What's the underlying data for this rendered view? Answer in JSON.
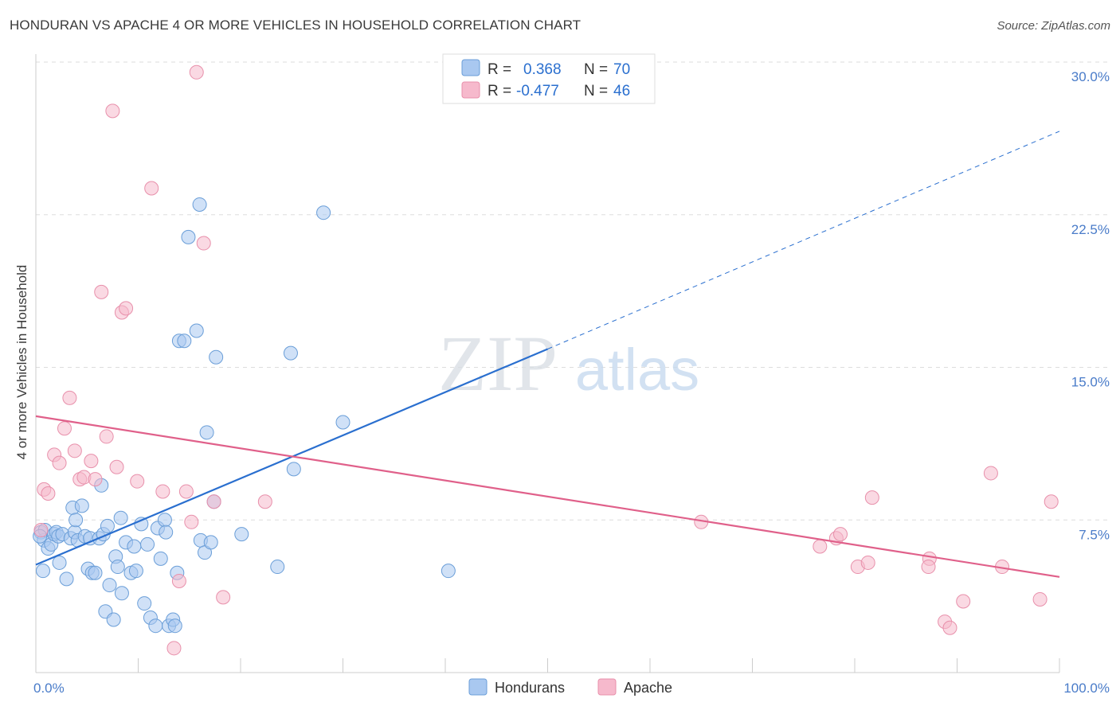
{
  "title": "HONDURAN VS APACHE 4 OR MORE VEHICLES IN HOUSEHOLD CORRELATION CHART",
  "source": "Source: ZipAtlas.com",
  "watermark": {
    "zip": "ZIP",
    "atlas": "atlas"
  },
  "colors": {
    "blue_fill": "#a9c8f0",
    "blue_stroke": "#6a9ed8",
    "blue_line": "#2a6fcf",
    "pink_fill": "#f6b9cc",
    "pink_stroke": "#e890ab",
    "pink_line": "#e0608a",
    "grid": "#dddddd",
    "tick_text": "#4a7cc9"
  },
  "legend": {
    "rows": [
      {
        "r_label": "R =",
        "r_value": "0.368",
        "n_label": "N =",
        "n_value": "70",
        "color": "blue"
      },
      {
        "r_label": "R =",
        "r_value": "-0.477",
        "n_label": "N =",
        "n_value": "46",
        "color": "pink"
      }
    ]
  },
  "chart_data": {
    "type": "scatter",
    "title": "HONDURAN VS APACHE 4 OR MORE VEHICLES IN HOUSEHOLD CORRELATION CHART",
    "xlabel": "",
    "ylabel": "4 or more Vehicles in Household",
    "xlim": [
      0,
      100
    ],
    "ylim": [
      0,
      31
    ],
    "x_ticks": [
      "0.0%",
      "100.0%"
    ],
    "y_ticks": [
      {
        "value": 7.5,
        "label": "7.5%"
      },
      {
        "value": 15.0,
        "label": "15.0%"
      },
      {
        "value": 22.5,
        "label": "22.5%"
      },
      {
        "value": 30.0,
        "label": "30.0%"
      }
    ],
    "grid": true,
    "legend_position": "top-center",
    "series": [
      {
        "name": "Hondurans",
        "color": "blue",
        "trend": {
          "x": [
            0,
            50
          ],
          "y": [
            5.3,
            15.9
          ],
          "dashed_extension_to": [
            100,
            26.6
          ]
        },
        "points": [
          [
            0.5,
            6.9
          ],
          [
            0.8,
            6.5
          ],
          [
            0.9,
            7.0
          ],
          [
            0.7,
            5.0
          ],
          [
            1.2,
            6.1
          ],
          [
            1.5,
            6.3
          ],
          [
            1.8,
            6.8
          ],
          [
            2.0,
            6.9
          ],
          [
            2.2,
            6.7
          ],
          [
            2.3,
            5.4
          ],
          [
            2.6,
            6.8
          ],
          [
            3.0,
            4.6
          ],
          [
            3.4,
            6.6
          ],
          [
            3.6,
            8.1
          ],
          [
            3.8,
            6.9
          ],
          [
            3.9,
            7.5
          ],
          [
            4.1,
            6.5
          ],
          [
            4.5,
            8.2
          ],
          [
            4.8,
            6.7
          ],
          [
            5.1,
            5.1
          ],
          [
            5.3,
            6.6
          ],
          [
            5.5,
            4.9
          ],
          [
            5.8,
            4.9
          ],
          [
            6.2,
            6.6
          ],
          [
            6.4,
            9.2
          ],
          [
            6.6,
            6.8
          ],
          [
            6.8,
            3.0
          ],
          [
            7.0,
            7.2
          ],
          [
            7.2,
            4.3
          ],
          [
            7.6,
            2.6
          ],
          [
            7.8,
            5.7
          ],
          [
            8.0,
            5.2
          ],
          [
            8.3,
            7.6
          ],
          [
            8.4,
            3.9
          ],
          [
            8.8,
            6.4
          ],
          [
            9.3,
            4.9
          ],
          [
            9.6,
            6.2
          ],
          [
            9.8,
            5.0
          ],
          [
            10.3,
            7.3
          ],
          [
            10.6,
            3.4
          ],
          [
            10.9,
            6.3
          ],
          [
            11.2,
            2.7
          ],
          [
            11.7,
            2.3
          ],
          [
            11.9,
            7.1
          ],
          [
            12.2,
            5.6
          ],
          [
            12.6,
            7.5
          ],
          [
            12.7,
            6.9
          ],
          [
            13.0,
            2.3
          ],
          [
            13.4,
            2.6
          ],
          [
            13.6,
            2.3
          ],
          [
            13.8,
            4.9
          ],
          [
            14.0,
            16.3
          ],
          [
            14.5,
            16.3
          ],
          [
            14.9,
            21.4
          ],
          [
            15.7,
            16.8
          ],
          [
            16.0,
            23.0
          ],
          [
            16.1,
            6.5
          ],
          [
            16.5,
            5.9
          ],
          [
            16.7,
            11.8
          ],
          [
            17.1,
            6.4
          ],
          [
            17.4,
            8.4
          ],
          [
            17.6,
            15.5
          ],
          [
            20.1,
            6.8
          ],
          [
            23.6,
            5.2
          ],
          [
            25.2,
            10.0
          ],
          [
            24.9,
            15.7
          ],
          [
            28.1,
            22.6
          ],
          [
            30.0,
            12.3
          ],
          [
            40.3,
            5.0
          ],
          [
            0.4,
            6.7
          ]
        ]
      },
      {
        "name": "Apache",
        "color": "pink",
        "trend": {
          "x": [
            0,
            100
          ],
          "y": [
            12.6,
            4.7
          ]
        },
        "points": [
          [
            0.5,
            7.0
          ],
          [
            0.8,
            9.0
          ],
          [
            1.2,
            8.8
          ],
          [
            1.8,
            10.7
          ],
          [
            2.3,
            10.3
          ],
          [
            2.8,
            12.0
          ],
          [
            3.3,
            13.5
          ],
          [
            3.8,
            10.9
          ],
          [
            4.3,
            9.5
          ],
          [
            4.7,
            9.6
          ],
          [
            5.4,
            10.4
          ],
          [
            5.8,
            9.5
          ],
          [
            6.4,
            18.7
          ],
          [
            6.9,
            11.6
          ],
          [
            7.5,
            27.6
          ],
          [
            7.9,
            10.1
          ],
          [
            8.4,
            17.7
          ],
          [
            8.8,
            17.9
          ],
          [
            9.9,
            9.4
          ],
          [
            11.3,
            23.8
          ],
          [
            12.4,
            8.9
          ],
          [
            14.0,
            4.5
          ],
          [
            14.7,
            8.9
          ],
          [
            15.2,
            7.4
          ],
          [
            15.7,
            29.5
          ],
          [
            16.4,
            21.1
          ],
          [
            17.4,
            8.4
          ],
          [
            18.3,
            3.7
          ],
          [
            22.4,
            8.4
          ],
          [
            13.5,
            1.2
          ],
          [
            65.0,
            7.4
          ],
          [
            76.6,
            6.2
          ],
          [
            78.2,
            6.6
          ],
          [
            78.6,
            6.8
          ],
          [
            80.3,
            5.2
          ],
          [
            81.3,
            5.4
          ],
          [
            81.7,
            8.6
          ],
          [
            87.3,
            5.6
          ],
          [
            87.2,
            5.2
          ],
          [
            88.8,
            2.5
          ],
          [
            89.3,
            2.2
          ],
          [
            90.6,
            3.5
          ],
          [
            93.3,
            9.8
          ],
          [
            94.4,
            5.2
          ],
          [
            98.1,
            3.6
          ],
          [
            99.2,
            8.4
          ]
        ]
      }
    ]
  },
  "bottom_legend": [
    {
      "label": "Hondurans",
      "color": "blue"
    },
    {
      "label": "Apache",
      "color": "pink"
    }
  ]
}
